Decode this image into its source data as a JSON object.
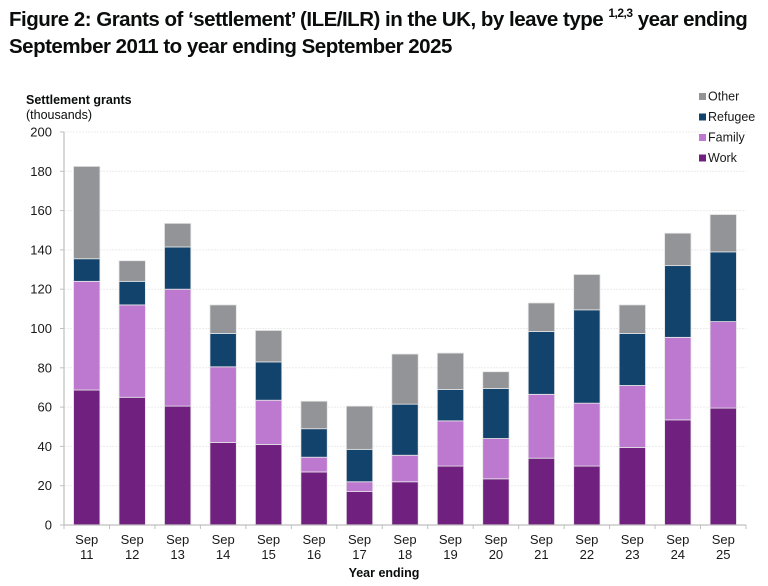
{
  "figure": {
    "title_main": "Figure 2: Grants of ‘settlement’ (ILE/ILR) in the UK, by leave type ",
    "title_sup": "1,2,3",
    "title_tail": " year ending September 2011 to year ending September 2025"
  },
  "chart_data": {
    "type": "bar",
    "stacked": true,
    "title": "Figure 2: Grants of ‘settlement’ (ILE/ILR) in the UK, by leave type 1,2,3 year ending September 2011 to year ending September 2025",
    "ylabel": "Settlement grants",
    "ylabel_sub": "(thousands)",
    "xlabel": "Year ending",
    "ylim": [
      0,
      200
    ],
    "yticks": [
      0,
      20,
      40,
      60,
      80,
      100,
      120,
      140,
      160,
      180,
      200
    ],
    "grid": true,
    "legend_position": "top-right",
    "categories": [
      [
        "Sep",
        "11"
      ],
      [
        "Sep",
        "12"
      ],
      [
        "Sep",
        "13"
      ],
      [
        "Sep",
        "14"
      ],
      [
        "Sep",
        "15"
      ],
      [
        "Sep",
        "16"
      ],
      [
        "Sep",
        "17"
      ],
      [
        "Sep",
        "18"
      ],
      [
        "Sep",
        "19"
      ],
      [
        "Sep",
        "20"
      ],
      [
        "Sep",
        "21"
      ],
      [
        "Sep",
        "22"
      ],
      [
        "Sep",
        "23"
      ],
      [
        "Sep",
        "24"
      ],
      [
        "Sep",
        "25"
      ]
    ],
    "series": [
      {
        "name": "Work",
        "color": "#70217f",
        "values": [
          68.7,
          65.0,
          60.5,
          42.0,
          41.0,
          27.0,
          17.0,
          22.0,
          30.0,
          23.5,
          34.0,
          30.0,
          39.5,
          53.5,
          59.5
        ]
      },
      {
        "name": "Family",
        "color": "#bd78d0",
        "values": [
          55.3,
          47.0,
          59.5,
          38.5,
          22.5,
          7.5,
          5.0,
          13.5,
          23.0,
          20.5,
          32.5,
          32.0,
          31.5,
          42.0,
          44.0
        ]
      },
      {
        "name": "Refugee",
        "color": "#12436d",
        "values": [
          11.5,
          12.0,
          21.5,
          17.0,
          19.5,
          14.5,
          16.5,
          26.0,
          16.0,
          25.5,
          32.0,
          47.5,
          26.5,
          36.5,
          35.5
        ]
      },
      {
        "name": "Other",
        "color": "#929497",
        "values": [
          47.0,
          10.5,
          12.0,
          14.5,
          16.0,
          14.0,
          22.0,
          25.5,
          18.5,
          8.5,
          14.5,
          18.0,
          14.5,
          16.5,
          19.0
        ]
      }
    ],
    "legend_order": [
      "Other",
      "Refugee",
      "Family",
      "Work"
    ]
  }
}
